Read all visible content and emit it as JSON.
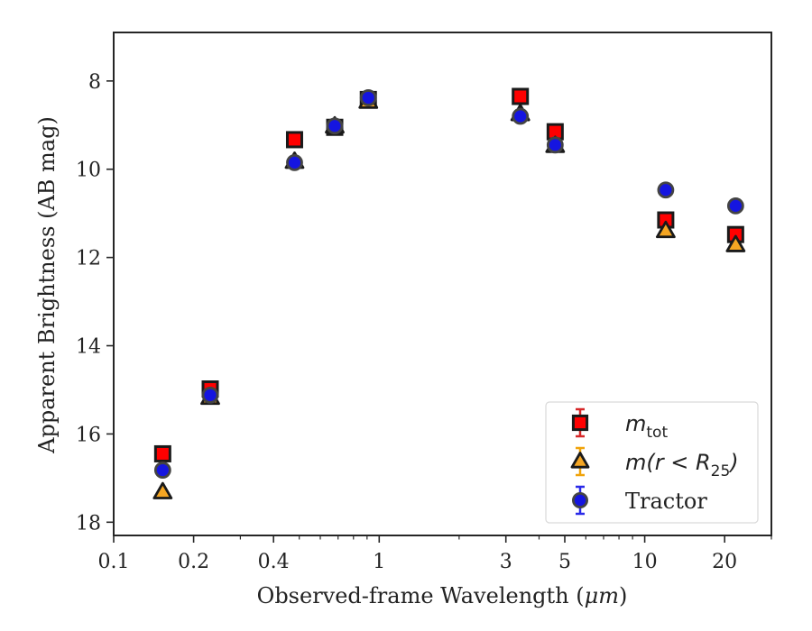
{
  "chart_data": {
    "type": "scatter",
    "title": "",
    "xlabel": "Observed-frame Wavelength (",
    "xlabel_unit": "μm",
    "ylabel": "Apparent Brightness (AB mag)",
    "xscale": "log",
    "xlim": [
      0.1,
      30
    ],
    "ylim": [
      18.3,
      6.9
    ],
    "y_inverted": true,
    "grid": false,
    "legend_position": "lower-right",
    "xticks": [
      {
        "value": 0.1,
        "label": "0.1"
      },
      {
        "value": 0.2,
        "label": "0.2"
      },
      {
        "value": 0.4,
        "label": "0.4"
      },
      {
        "value": 1,
        "label": "1"
      },
      {
        "value": 3,
        "label": "3"
      },
      {
        "value": 5,
        "label": "5"
      },
      {
        "value": 10,
        "label": "10"
      },
      {
        "value": 20,
        "label": "20"
      }
    ],
    "yticks": [
      {
        "value": 8,
        "label": "8"
      },
      {
        "value": 10,
        "label": "10"
      },
      {
        "value": 12,
        "label": "12"
      },
      {
        "value": 14,
        "label": "14"
      },
      {
        "value": 16,
        "label": "16"
      },
      {
        "value": 18,
        "label": "18"
      }
    ],
    "series": [
      {
        "name": "m_tot",
        "legend_main": "m",
        "legend_sub": "tot",
        "marker": "square",
        "color": "#ff0000",
        "errcolor": "#d62728",
        "points": [
          {
            "x": 0.153,
            "y": 16.45
          },
          {
            "x": 0.231,
            "y": 14.98
          },
          {
            "x": 0.48,
            "y": 9.33
          },
          {
            "x": 0.68,
            "y": 9.05
          },
          {
            "x": 0.91,
            "y": 8.42
          },
          {
            "x": 3.4,
            "y": 8.35
          },
          {
            "x": 4.6,
            "y": 9.15
          },
          {
            "x": 12.0,
            "y": 11.15
          },
          {
            "x": 22.0,
            "y": 11.48
          }
        ]
      },
      {
        "name": "m(r<R_25)",
        "legend_main": "m(r < R",
        "legend_sub": "25",
        "legend_tail": ")",
        "marker": "triangle",
        "color": "#f5a623",
        "errcolor": "#f0a30a",
        "points": [
          {
            "x": 0.153,
            "y": 17.32
          },
          {
            "x": 0.231,
            "y": 15.18
          },
          {
            "x": 0.48,
            "y": 9.83
          },
          {
            "x": 0.68,
            "y": 9.03
          },
          {
            "x": 0.91,
            "y": 8.47
          },
          {
            "x": 3.4,
            "y": 8.75
          },
          {
            "x": 4.6,
            "y": 9.47
          },
          {
            "x": 12.0,
            "y": 11.4
          },
          {
            "x": 22.0,
            "y": 11.72
          }
        ]
      },
      {
        "name": "Tractor",
        "legend_main": "Tractor",
        "marker": "circle",
        "color": "#1515e0",
        "errcolor": "#2a2ae8",
        "points": [
          {
            "x": 0.153,
            "y": 16.82
          },
          {
            "x": 0.231,
            "y": 15.12
          },
          {
            "x": 0.48,
            "y": 9.85
          },
          {
            "x": 0.68,
            "y": 9.02
          },
          {
            "x": 0.91,
            "y": 8.38
          },
          {
            "x": 3.4,
            "y": 8.8
          },
          {
            "x": 4.6,
            "y": 9.45
          },
          {
            "x": 12.0,
            "y": 10.47
          },
          {
            "x": 22.0,
            "y": 10.83
          }
        ]
      }
    ]
  }
}
